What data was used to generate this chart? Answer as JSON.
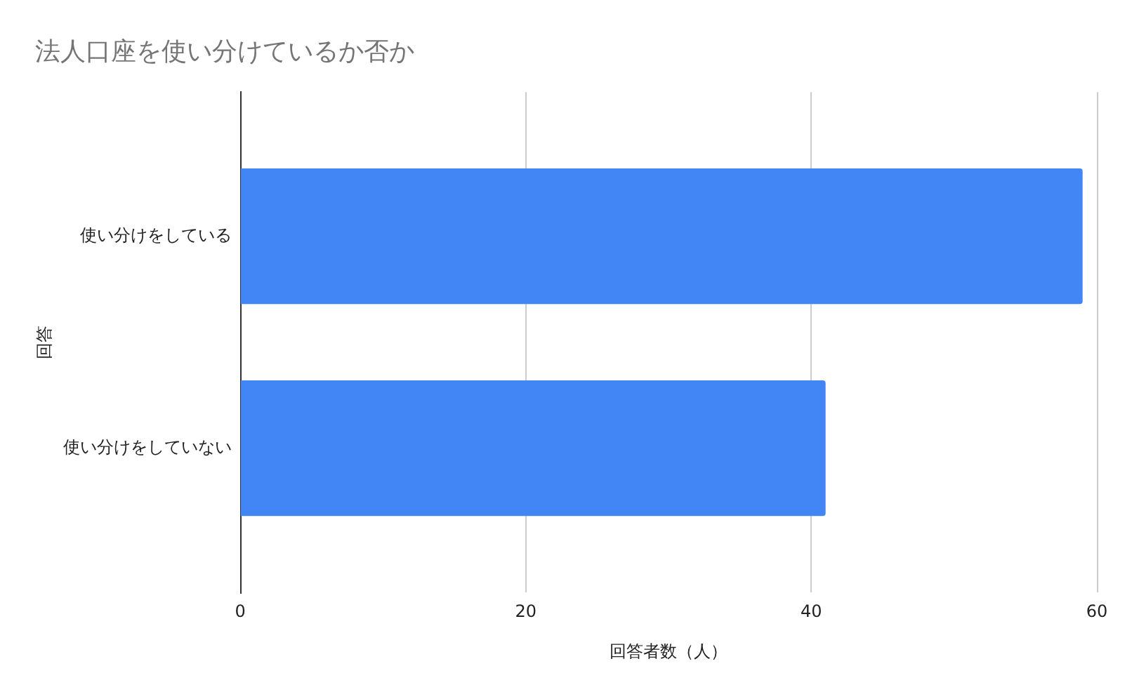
{
  "chart_data": {
    "type": "bar",
    "orientation": "horizontal",
    "title": "法人口座を使い分けているか否か",
    "xlabel": "回答者数（人）",
    "ylabel": "回答",
    "categories": [
      "使い分けをしている",
      "使い分けをしていない"
    ],
    "values": [
      59,
      41
    ],
    "color": "#4285f4",
    "xlim": [
      0,
      60
    ],
    "xticks": [
      0,
      20,
      40,
      60
    ],
    "grid": "x"
  }
}
